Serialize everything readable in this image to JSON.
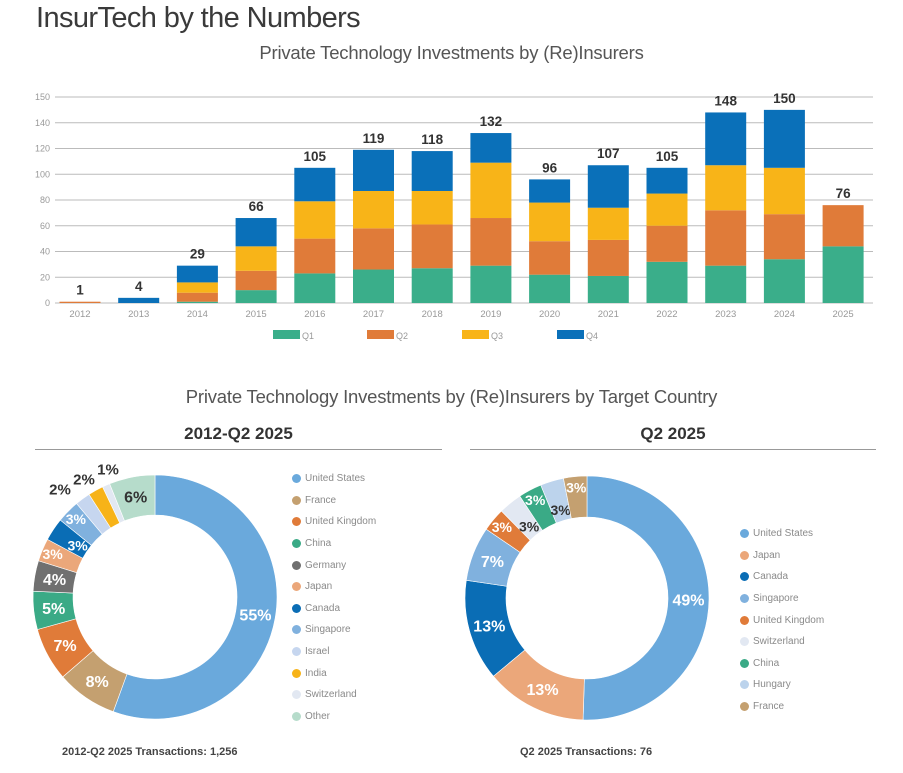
{
  "header": {
    "title": "InsurTech by the Numbers"
  },
  "colors": {
    "Q1": "#3aae8a",
    "Q2": "#e07b39",
    "Q3": "#f8b418",
    "Q4": "#0a70b9",
    "grid": "#bbbbbb"
  },
  "chart_data": [
    {
      "type": "bar",
      "stacked": true,
      "title": "Private Technology Investments by (Re)Insurers",
      "categories": [
        "2012",
        "2013",
        "2014",
        "2015",
        "2016",
        "2017",
        "2018",
        "2019",
        "2020",
        "2021",
        "2022",
        "2023",
        "2024",
        "2025"
      ],
      "series": [
        {
          "name": "Q1",
          "values": [
            0,
            0,
            1,
            10,
            23,
            26,
            27,
            29,
            22,
            21,
            32,
            29,
            34,
            44
          ]
        },
        {
          "name": "Q2",
          "values": [
            1,
            0,
            7,
            15,
            27,
            32,
            34,
            37,
            26,
            28,
            28,
            43,
            35,
            32
          ]
        },
        {
          "name": "Q3",
          "values": [
            0,
            0,
            8,
            19,
            29,
            29,
            26,
            43,
            30,
            25,
            25,
            35,
            36,
            0
          ]
        },
        {
          "name": "Q4",
          "values": [
            0,
            4,
            13,
            22,
            26,
            32,
            31,
            23,
            18,
            33,
            20,
            41,
            45,
            0
          ]
        }
      ],
      "totals": [
        "1",
        "4",
        "29",
        "66",
        "105",
        "119",
        "118",
        "132",
        "96",
        "107",
        "105",
        "148",
        "150",
        "76"
      ],
      "y_tick_labels": [
        "0",
        "20",
        "40",
        "60",
        "80",
        "100",
        "120",
        "140",
        "150"
      ],
      "ylim": [
        0,
        160
      ],
      "grid": true,
      "legend": "bottom"
    },
    {
      "type": "pie",
      "donut": true,
      "section_title": "Private Technology Investments by (Re)Insurers by Target Country",
      "title": "2012-Q2 2025",
      "footnote": "2012-Q2 2025 Transactions: 1,256",
      "legend": "right",
      "slices": [
        {
          "label": "United States",
          "value": 55,
          "text": "55%",
          "color": "#6aa9dc"
        },
        {
          "label": "France",
          "value": 8,
          "text": "8%",
          "color": "#c4a070"
        },
        {
          "label": "United Kingdom",
          "value": 7,
          "text": "7%",
          "color": "#e07b39"
        },
        {
          "label": "China",
          "value": 5,
          "text": "5%",
          "color": "#3aaa86"
        },
        {
          "label": "Germany",
          "value": 4,
          "text": "4%",
          "color": "#707070"
        },
        {
          "label": "Japan",
          "value": 3,
          "text": "3%",
          "color": "#eba77a"
        },
        {
          "label": "Canada",
          "value": 3,
          "text": "3%",
          "color": "#0a6db5"
        },
        {
          "label": "Singapore",
          "value": 3,
          "text": "3%",
          "color": "#80b1de"
        },
        {
          "label": "Israel",
          "value": 2,
          "text": "2%",
          "color": "#c6d6ef"
        },
        {
          "label": "India",
          "value": 2,
          "text": "2%",
          "color": "#f7b318"
        },
        {
          "label": "Switzerland",
          "value": 1,
          "text": "1%",
          "color": "#e2e8f2"
        },
        {
          "label": "Other",
          "value": 6,
          "text": "6%",
          "color": "#b6dccb"
        }
      ]
    },
    {
      "type": "pie",
      "donut": true,
      "title": "Q2 2025",
      "footnote": "Q2 2025 Transactions: 76",
      "legend": "right",
      "slices": [
        {
          "label": "United States",
          "value": 49,
          "text": "49%",
          "color": "#6aa9dc"
        },
        {
          "label": "Japan",
          "value": 13,
          "text": "13%",
          "color": "#eba77a"
        },
        {
          "label": "Canada",
          "value": 13,
          "text": "13%",
          "color": "#0a6db5"
        },
        {
          "label": "Singapore",
          "value": 7,
          "text": "7%",
          "color": "#80b1de"
        },
        {
          "label": "United Kingdom",
          "value": 3,
          "text": "3%",
          "color": "#e07b39"
        },
        {
          "label": "Switzerland",
          "value": 3,
          "text": "3%",
          "color": "#e2e8f2"
        },
        {
          "label": "China",
          "value": 3,
          "text": "3%",
          "color": "#3aaa86"
        },
        {
          "label": "Hungary",
          "value": 3,
          "text": "3%",
          "color": "#bcd3ec"
        },
        {
          "label": "France",
          "value": 3,
          "text": "3%",
          "color": "#c4a070"
        }
      ]
    }
  ]
}
